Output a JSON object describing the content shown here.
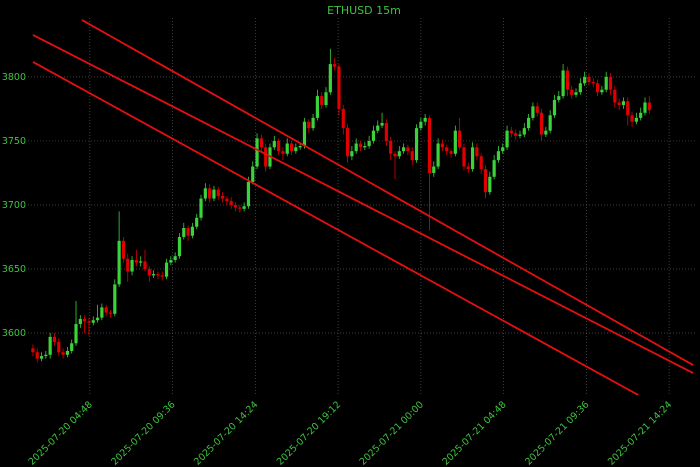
{
  "chart_data": {
    "type": "candlestick",
    "title": "ETHUSD 15m",
    "x": [
      1.5,
      1.75,
      2,
      2.25,
      2.5,
      2.75,
      3,
      3.25,
      3.5,
      3.75,
      4,
      4.25,
      4.5,
      4.75,
      5,
      5.25,
      5.5,
      5.75,
      6,
      6.25,
      6.5,
      6.75,
      7,
      7.25,
      7.5,
      7.75,
      8,
      8.25,
      8.5,
      8.75,
      9,
      9.25,
      9.5,
      9.75,
      10,
      10.25,
      10.5,
      10.75,
      11,
      11.25,
      11.5,
      11.75,
      12,
      12.25,
      12.5,
      12.75,
      13,
      13.25,
      13.5,
      13.75,
      14,
      14.25,
      14.5,
      14.75,
      15,
      15.25,
      15.5,
      15.75,
      16,
      16.25,
      16.5,
      16.75,
      17,
      17.25,
      17.5,
      17.75,
      18,
      18.25,
      18.5,
      18.75,
      19,
      19.25,
      19.5,
      19.75,
      20,
      20.25,
      20.5,
      20.75,
      21,
      21.25,
      21.5,
      21.75,
      22,
      22.25,
      22.5,
      22.75,
      23,
      23.25,
      23.5,
      23.75,
      24,
      24.25,
      24.5,
      24.75,
      25,
      25.25,
      25.5,
      25.75,
      26,
      26.25,
      26.5,
      26.75,
      27,
      27.25,
      27.5,
      27.75,
      28,
      28.25,
      28.5,
      28.75,
      29,
      29.25,
      29.5,
      29.75,
      30,
      30.25,
      30.5,
      30.75,
      31,
      31.25,
      31.5,
      31.75,
      32,
      32.25,
      32.5,
      32.75,
      33,
      33.25,
      33.5,
      33.75,
      34,
      34.25,
      34.5,
      34.75,
      35,
      35.25,
      35.5,
      35.75,
      36,
      36.25,
      36.5,
      36.75,
      37,
      37.25
    ],
    "series": [
      {
        "up_color": "#3ad33a",
        "down_color": "#e00000",
        "ohlc": [
          [
            3588,
            3591,
            3582,
            3585
          ],
          [
            3585,
            3588,
            3577,
            3580
          ],
          [
            3580,
            3585,
            3578,
            3582
          ],
          [
            3582,
            3586,
            3580,
            3583
          ],
          [
            3583,
            3600,
            3580,
            3597
          ],
          [
            3597,
            3600,
            3590,
            3593
          ],
          [
            3593,
            3596,
            3582,
            3585
          ],
          [
            3585,
            3588,
            3580,
            3583
          ],
          [
            3583,
            3589,
            3581,
            3586
          ],
          [
            3586,
            3595,
            3584,
            3592
          ],
          [
            3592,
            3625,
            3590,
            3607
          ],
          [
            3607,
            3614,
            3604,
            3611
          ],
          [
            3611,
            3614,
            3600,
            3609
          ],
          [
            3609,
            3612,
            3598,
            3608
          ],
          [
            3608,
            3613,
            3606,
            3610
          ],
          [
            3610,
            3622,
            3608,
            3612
          ],
          [
            3612,
            3623,
            3610,
            3620
          ],
          [
            3620,
            3622,
            3613,
            3616
          ],
          [
            3616,
            3618,
            3612,
            3615
          ],
          [
            3615,
            3642,
            3613,
            3638
          ],
          [
            3638,
            3695,
            3636,
            3672
          ],
          [
            3672,
            3675,
            3655,
            3658
          ],
          [
            3658,
            3662,
            3640,
            3648
          ],
          [
            3648,
            3660,
            3645,
            3657
          ],
          [
            3657,
            3665,
            3652,
            3655
          ],
          [
            3655,
            3660,
            3652,
            3656
          ],
          [
            3656,
            3665,
            3648,
            3650
          ],
          [
            3650,
            3652,
            3640,
            3645
          ],
          [
            3645,
            3649,
            3643,
            3646
          ],
          [
            3646,
            3648,
            3642,
            3645
          ],
          [
            3645,
            3648,
            3641,
            3644
          ],
          [
            3644,
            3658,
            3642,
            3655
          ],
          [
            3655,
            3660,
            3653,
            3657
          ],
          [
            3657,
            3663,
            3655,
            3660
          ],
          [
            3660,
            3678,
            3658,
            3675
          ],
          [
            3675,
            3686,
            3673,
            3682
          ],
          [
            3682,
            3684,
            3672,
            3676
          ],
          [
            3676,
            3686,
            3674,
            3683
          ],
          [
            3683,
            3693,
            3681,
            3690
          ],
          [
            3690,
            3708,
            3688,
            3705
          ],
          [
            3705,
            3717,
            3703,
            3713
          ],
          [
            3713,
            3716,
            3702,
            3705
          ],
          [
            3705,
            3715,
            3703,
            3712
          ],
          [
            3712,
            3714,
            3704,
            3707
          ],
          [
            3707,
            3710,
            3702,
            3705
          ],
          [
            3705,
            3707,
            3700,
            3703
          ],
          [
            3703,
            3706,
            3697,
            3700
          ],
          [
            3700,
            3702,
            3695,
            3698
          ],
          [
            3698,
            3700,
            3694,
            3697
          ],
          [
            3697,
            3702,
            3695,
            3699
          ],
          [
            3699,
            3722,
            3697,
            3718
          ],
          [
            3718,
            3734,
            3716,
            3730
          ],
          [
            3730,
            3756,
            3728,
            3752
          ],
          [
            3752,
            3755,
            3742,
            3745
          ],
          [
            3745,
            3748,
            3726,
            3730
          ],
          [
            3730,
            3748,
            3728,
            3745
          ],
          [
            3745,
            3754,
            3743,
            3750
          ],
          [
            3750,
            3752,
            3739,
            3742
          ],
          [
            3742,
            3745,
            3735,
            3740
          ],
          [
            3740,
            3752,
            3738,
            3748
          ],
          [
            3748,
            3750,
            3739,
            3742
          ],
          [
            3742,
            3748,
            3740,
            3745
          ],
          [
            3745,
            3749,
            3743,
            3746
          ],
          [
            3746,
            3768,
            3744,
            3765
          ],
          [
            3765,
            3767,
            3756,
            3760
          ],
          [
            3760,
            3771,
            3758,
            3768
          ],
          [
            3768,
            3790,
            3766,
            3785
          ],
          [
            3785,
            3788,
            3775,
            3778
          ],
          [
            3778,
            3792,
            3776,
            3788
          ],
          [
            3788,
            3822,
            3786,
            3810
          ],
          [
            3810,
            3815,
            3805,
            3808
          ],
          [
            3808,
            3810,
            3770,
            3775
          ],
          [
            3775,
            3778,
            3755,
            3760
          ],
          [
            3760,
            3763,
            3733,
            3738
          ],
          [
            3738,
            3746,
            3735,
            3742
          ],
          [
            3742,
            3752,
            3740,
            3748
          ],
          [
            3748,
            3750,
            3742,
            3745
          ],
          [
            3745,
            3749,
            3743,
            3746
          ],
          [
            3746,
            3754,
            3744,
            3750
          ],
          [
            3750,
            3762,
            3748,
            3758
          ],
          [
            3758,
            3766,
            3756,
            3762
          ],
          [
            3762,
            3772,
            3760,
            3764
          ],
          [
            3764,
            3767,
            3746,
            3750
          ],
          [
            3750,
            3753,
            3735,
            3740
          ],
          [
            3740,
            3742,
            3720,
            3738
          ],
          [
            3738,
            3746,
            3736,
            3742
          ],
          [
            3742,
            3748,
            3740,
            3745
          ],
          [
            3745,
            3747,
            3739,
            3742
          ],
          [
            3742,
            3745,
            3731,
            3735
          ],
          [
            3735,
            3763,
            3733,
            3760
          ],
          [
            3760,
            3768,
            3758,
            3765
          ],
          [
            3765,
            3771,
            3762,
            3768
          ],
          [
            3768,
            3770,
            3680,
            3725
          ],
          [
            3725,
            3734,
            3722,
            3730
          ],
          [
            3730,
            3752,
            3728,
            3748
          ],
          [
            3748,
            3751,
            3742,
            3745
          ],
          [
            3745,
            3747,
            3739,
            3742
          ],
          [
            3742,
            3744,
            3737,
            3740
          ],
          [
            3740,
            3762,
            3738,
            3758
          ],
          [
            3758,
            3768,
            3743,
            3745
          ],
          [
            3745,
            3748,
            3727,
            3730
          ],
          [
            3730,
            3733,
            3725,
            3728
          ],
          [
            3728,
            3749,
            3726,
            3745
          ],
          [
            3745,
            3748,
            3735,
            3738
          ],
          [
            3738,
            3740,
            3724,
            3728
          ],
          [
            3728,
            3731,
            3705,
            3710
          ],
          [
            3710,
            3726,
            3708,
            3722
          ],
          [
            3722,
            3739,
            3720,
            3735
          ],
          [
            3735,
            3746,
            3733,
            3742
          ],
          [
            3742,
            3748,
            3740,
            3745
          ],
          [
            3745,
            3762,
            3743,
            3758
          ],
          [
            3758,
            3761,
            3753,
            3756
          ],
          [
            3756,
            3759,
            3751,
            3754
          ],
          [
            3754,
            3758,
            3752,
            3755
          ],
          [
            3755,
            3764,
            3753,
            3760
          ],
          [
            3760,
            3771,
            3758,
            3768
          ],
          [
            3768,
            3780,
            3766,
            3777
          ],
          [
            3777,
            3780,
            3769,
            3772
          ],
          [
            3772,
            3775,
            3750,
            3755
          ],
          [
            3755,
            3761,
            3753,
            3758
          ],
          [
            3758,
            3774,
            3756,
            3770
          ],
          [
            3770,
            3786,
            3768,
            3782
          ],
          [
            3782,
            3789,
            3780,
            3785
          ],
          [
            3785,
            3810,
            3783,
            3805
          ],
          [
            3805,
            3808,
            3785,
            3790
          ],
          [
            3790,
            3793,
            3783,
            3786
          ],
          [
            3786,
            3791,
            3784,
            3788
          ],
          [
            3788,
            3799,
            3786,
            3795
          ],
          [
            3795,
            3804,
            3793,
            3800
          ],
          [
            3800,
            3803,
            3793,
            3796
          ],
          [
            3796,
            3799,
            3792,
            3795
          ],
          [
            3795,
            3798,
            3785,
            3788
          ],
          [
            3788,
            3793,
            3786,
            3790
          ],
          [
            3790,
            3804,
            3788,
            3800
          ],
          [
            3800,
            3803,
            3786,
            3790
          ],
          [
            3790,
            3793,
            3776,
            3780
          ],
          [
            3780,
            3783,
            3774,
            3778
          ],
          [
            3778,
            3784,
            3775,
            3781
          ],
          [
            3781,
            3784,
            3762,
            3770
          ],
          [
            3770,
            3773,
            3761,
            3765
          ],
          [
            3765,
            3772,
            3763,
            3768
          ],
          [
            3768,
            3776,
            3766,
            3772
          ],
          [
            3772,
            3784,
            3770,
            3780
          ],
          [
            3780,
            3785,
            3771,
            3774
          ]
        ]
      }
    ],
    "lines": [
      {
        "color": "#e41010",
        "x": [
          4.337,
          39.79
        ],
        "y": [
          3844.5,
          3575
        ]
      },
      {
        "color": "#e41010",
        "x": [
          1.503,
          39.79
        ],
        "y": [
          3832.8,
          3568.75
        ]
      },
      {
        "color": "#e41010",
        "x": [
          1.503,
          36.61
        ],
        "y": [
          3811.7,
          3551.6
        ]
      }
    ],
    "xlim": [
      1.215,
      39.9
    ],
    "ylim": [
      3551.6,
      3846
    ],
    "xticks": [
      {
        "value": 4.8,
        "label": "2025-07-20 04:48"
      },
      {
        "value": 9.6,
        "label": "2025-07-20 09:36"
      },
      {
        "value": 14.4,
        "label": "2025-07-20 14:24"
      },
      {
        "value": 19.2,
        "label": "2025-07-20 19:12"
      },
      {
        "value": 24,
        "label": "2025-07-21 00:00"
      },
      {
        "value": 28.8,
        "label": "2025-07-21 04:48"
      },
      {
        "value": 33.6,
        "label": "2025-07-21 09:36"
      },
      {
        "value": 38.4,
        "label": "2025-07-21 14:24"
      }
    ],
    "yticks": [
      3600,
      3650,
      3700,
      3750,
      3800
    ],
    "grid": true,
    "text_color": "#3ec43e"
  }
}
